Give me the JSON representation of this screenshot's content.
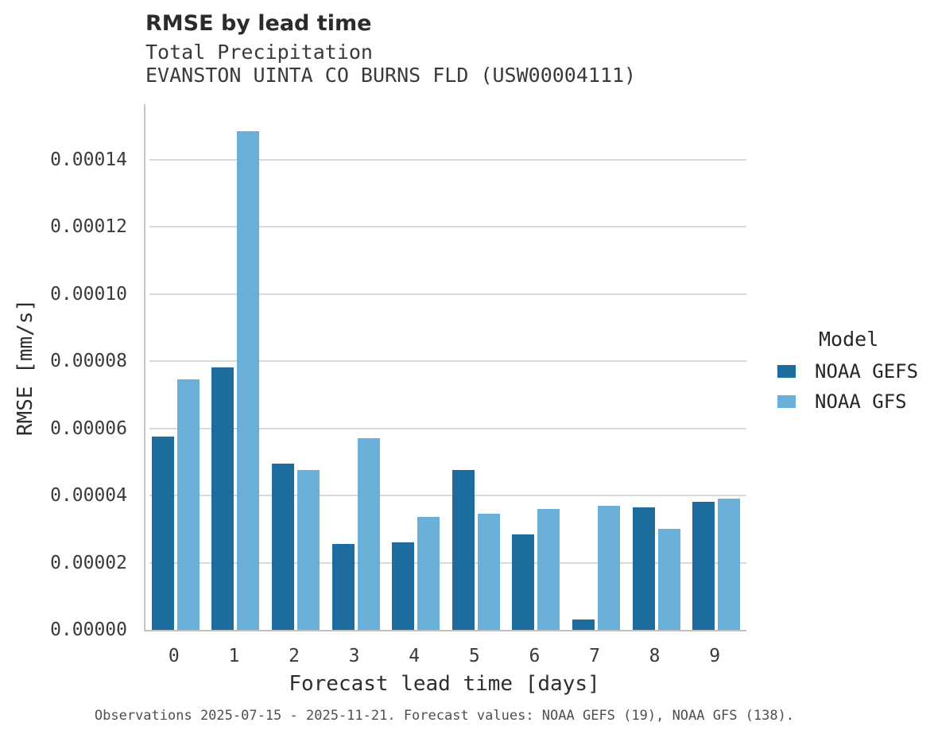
{
  "chart_data": {
    "type": "bar",
    "title": "RMSE by lead time",
    "subtitle_line1": "Total Precipitation",
    "subtitle_line2": "EVANSTON UINTA CO BURNS FLD (USW00004111)",
    "xlabel": "Forecast lead time [days]",
    "ylabel": "RMSE [mm/s]",
    "legend_title": "Model",
    "legend_position": "right",
    "grid": "horizontal-only",
    "ylim": [
      0,
      0.00015645
    ],
    "categories": [
      "0",
      "1",
      "2",
      "3",
      "4",
      "5",
      "6",
      "7",
      "8",
      "9"
    ],
    "ytick_values": [
      0,
      2e-05,
      4e-05,
      6e-05,
      8e-05,
      0.0001,
      0.00012,
      0.00014
    ],
    "ytick_labels": [
      "0.00000",
      "0.00002",
      "0.00004",
      "0.00006",
      "0.00008",
      "0.00010",
      "0.00012",
      "0.00014"
    ],
    "series": [
      {
        "name": "NOAA GEFS",
        "color": "#1c6d9e",
        "values": [
          5.75e-05,
          7.8e-05,
          4.95e-05,
          2.55e-05,
          2.6e-05,
          4.75e-05,
          2.85e-05,
          3e-06,
          3.65e-05,
          3.8e-05
        ]
      },
      {
        "name": "NOAA GFS",
        "color": "#69afd8",
        "values": [
          7.45e-05,
          0.0001485,
          4.75e-05,
          5.7e-05,
          3.35e-05,
          3.45e-05,
          3.6e-05,
          3.7e-05,
          3e-05,
          3.9e-05
        ]
      }
    ],
    "caption": "Observations 2025-07-15 - 2025-11-21. Forecast values: NOAA GEFS (19), NOAA GFS (138)."
  },
  "colors": {
    "background": "#ffffff",
    "gridline": "#d9d9d9",
    "axis_spine": "#c6c6c6",
    "title_text": "#2b2b2b",
    "subtitle_text": "#3a3a3a",
    "tick_text": "#3a3a3a",
    "caption_text": "#4f4f4f",
    "noaa_gefs": "#1c6d9e",
    "noaa_gfs": "#69afd8"
  }
}
